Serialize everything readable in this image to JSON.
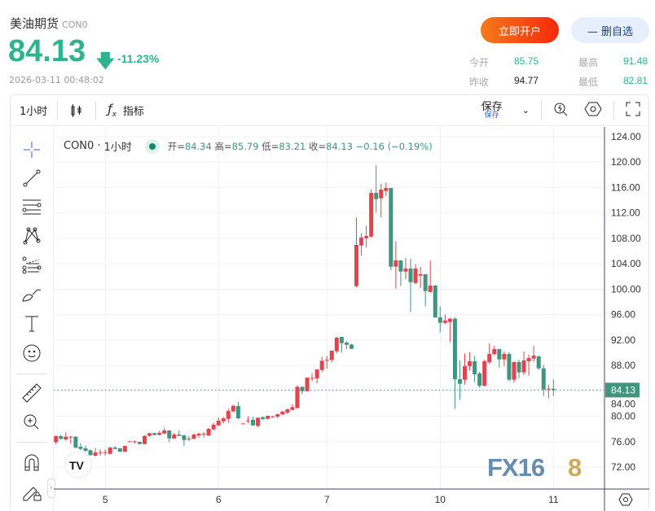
{
  "header": {
    "name": "美油期货",
    "code": "CON0",
    "price": "84.13",
    "change_pct": "-11.23%",
    "timestamp": "2026-03-11 00:48:02",
    "open_account": "立即开户",
    "remove_watch": "— 删自选"
  },
  "stats": {
    "open_label": "今开",
    "open": "85.75",
    "high_label": "最高",
    "high": "91.48",
    "prev_label": "昨收",
    "prev": "94.77",
    "low_label": "最低",
    "low": "82.81"
  },
  "toolbar": {
    "interval": "1小时",
    "indicators": "指标",
    "save": "保存",
    "save_sub": "保存"
  },
  "legend": {
    "symbol": "CON0",
    "interval": "1小时",
    "o_label": "开=",
    "o": "84.34",
    "h_label": "高=",
    "h": "85.79",
    "l_label": "低=",
    "l": "83.21",
    "c_label": "收=",
    "c": "84.13",
    "chg": "−0.16 (−0.19%)"
  },
  "watermark": "FX168",
  "colors": {
    "up": "#e2434d",
    "down": "#3f957e",
    "accent": "#2fb38f"
  },
  "chart_data": {
    "type": "candlestick",
    "ylim": [
      70,
      126
    ],
    "y_ticks": [
      "124.00",
      "120.00",
      "116.00",
      "112.00",
      "108.00",
      "104.00",
      "100.00",
      "96.00",
      "92.00",
      "88.00",
      "84.00",
      "80.00",
      "76.00",
      "72.00"
    ],
    "x_ticks": [
      {
        "label": "5",
        "index": 10
      },
      {
        "label": "6",
        "index": 33
      },
      {
        "label": "7",
        "index": 55
      },
      {
        "label": "10",
        "index": 78
      },
      {
        "label": "11",
        "index": 101
      }
    ],
    "last_price": "84.13",
    "ohlc": [
      [
        75.94,
        77.0,
        75.6,
        76.88
      ],
      [
        76.88,
        77.1,
        76.3,
        76.45
      ],
      [
        76.36,
        77.5,
        76.2,
        76.79
      ],
      [
        76.79,
        76.9,
        75.7,
        76.79
      ],
      [
        76.79,
        76.9,
        75.0,
        75.08
      ],
      [
        75.21,
        75.8,
        74.7,
        74.87
      ],
      [
        74.96,
        75.4,
        74.4,
        74.57
      ],
      [
        74.66,
        74.8,
        73.8,
        73.89
      ],
      [
        73.8,
        75.0,
        73.7,
        74.31
      ],
      [
        74.36,
        74.8,
        73.8,
        74.36
      ],
      [
        74.36,
        74.8,
        73.8,
        74.36
      ],
      [
        74.1,
        75.2,
        74.0,
        75.08
      ],
      [
        75.08,
        75.3,
        74.8,
        74.87
      ],
      [
        74.96,
        75.0,
        74.4,
        74.44
      ],
      [
        74.44,
        75.4,
        74.4,
        75.34
      ],
      [
        76.06,
        76.1,
        76.0,
        76.06
      ],
      [
        76.06,
        76.2,
        75.7,
        76.06
      ],
      [
        75.98,
        76.0,
        75.6,
        75.64
      ],
      [
        75.64,
        77.0,
        75.6,
        76.92
      ],
      [
        76.92,
        77.4,
        76.8,
        77.35
      ],
      [
        77.35,
        77.4,
        77.0,
        77.05
      ],
      [
        77.09,
        77.7,
        77.0,
        77.39
      ],
      [
        77.3,
        78.2,
        77.2,
        77.77
      ],
      [
        77.77,
        77.8,
        75.9,
        76.53
      ],
      [
        76.53,
        77.4,
        76.4,
        77.13
      ],
      [
        77.13,
        77.8,
        76.9,
        76.92
      ],
      [
        77.0,
        77.1,
        75.3,
        76.28
      ],
      [
        76.49,
        76.9,
        76.1,
        76.49
      ],
      [
        76.45,
        77.3,
        76.4,
        77.13
      ],
      [
        77.0,
        77.4,
        76.6,
        77.26
      ],
      [
        77.26,
        77.5,
        76.7,
        77.26
      ],
      [
        77.0,
        78.2,
        76.9,
        78.03
      ],
      [
        77.94,
        79.0,
        77.8,
        78.67
      ],
      [
        78.58,
        79.8,
        78.5,
        79.31
      ],
      [
        79.22,
        79.9,
        78.9,
        79.69
      ],
      [
        79.61,
        81.2,
        79.0,
        80.84
      ],
      [
        80.76,
        81.8,
        80.7,
        81.66
      ],
      [
        81.61,
        82.3,
        79.5,
        79.69
      ],
      [
        78.88,
        78.9,
        78.8,
        78.88
      ],
      [
        79.35,
        80.0,
        78.9,
        79.35
      ],
      [
        79.44,
        79.9,
        78.5,
        78.58
      ],
      [
        78.5,
        79.8,
        78.3,
        79.78
      ],
      [
        79.86,
        80.0,
        79.4,
        79.56
      ],
      [
        79.61,
        80.1,
        79.5,
        80.08
      ],
      [
        79.99,
        80.1,
        79.8,
        79.99
      ],
      [
        79.95,
        80.4,
        79.7,
        80.33
      ],
      [
        80.29,
        80.8,
        80.2,
        80.76
      ],
      [
        80.59,
        81.2,
        80.4,
        81.1
      ],
      [
        81.02,
        81.9,
        80.9,
        81.44
      ],
      [
        81.31,
        84.9,
        81.2,
        84.64
      ],
      [
        84.64,
        84.7,
        83.5,
        83.96
      ],
      [
        83.96,
        86.1,
        83.9,
        86.09
      ],
      [
        86.05,
        86.8,
        85.5,
        86.05
      ],
      [
        85.97,
        87.4,
        85.2,
        87.37
      ],
      [
        87.29,
        89.4,
        87.0,
        88.74
      ],
      [
        88.91,
        89.5,
        87.5,
        88.91
      ],
      [
        88.87,
        90.4,
        88.5,
        90.32
      ],
      [
        90.23,
        92.5,
        89.9,
        92.37
      ],
      [
        92.5,
        92.5,
        90.0,
        91.51
      ],
      [
        91.6,
        91.8,
        90.6,
        91.26
      ],
      [
        91.3,
        91.4,
        90.6,
        90.62
      ],
      [
        100.48,
        111.3,
        100.3,
        106.97
      ],
      [
        106.88,
        108.8,
        105.3,
        108.12
      ],
      [
        108.03,
        110.0,
        106.6,
        108.38
      ],
      [
        108.29,
        115.7,
        108.1,
        115.16
      ],
      [
        115.16,
        119.5,
        112.1,
        114.18
      ],
      [
        114.31,
        116.6,
        111.3,
        115.67
      ],
      [
        115.46,
        116.8,
        114.7,
        115.93
      ],
      [
        115.93,
        115.9,
        103.0,
        103.55
      ],
      [
        103.55,
        107.5,
        100.1,
        104.53
      ],
      [
        104.53,
        104.5,
        100.5,
        102.78
      ],
      [
        102.78,
        104.9,
        101.6,
        103.25
      ],
      [
        103.25,
        104.8,
        96.4,
        101.12
      ],
      [
        100.99,
        103.9,
        100.8,
        103.25
      ],
      [
        102.14,
        103.5,
        100.2,
        102.36
      ],
      [
        102.36,
        102.4,
        97.3,
        99.71
      ],
      [
        99.58,
        104.5,
        99.4,
        100.57
      ],
      [
        100.57,
        100.7,
        95.5,
        95.57
      ],
      [
        95.57,
        97.3,
        93.2,
        94.72
      ],
      [
        94.72,
        96.0,
        94.5,
        95.06
      ],
      [
        94.85,
        95.5,
        91.7,
        95.36
      ],
      [
        95.36,
        95.6,
        81.2,
        85.84
      ],
      [
        85.84,
        88.8,
        82.6,
        85.11
      ],
      [
        85.76,
        89.9,
        85.0,
        87.89
      ],
      [
        87.89,
        90.1,
        87.2,
        88.66
      ],
      [
        88.66,
        89.5,
        85.4,
        86.61
      ],
      [
        86.74,
        87.0,
        84.5,
        84.82
      ],
      [
        84.82,
        88.9,
        84.7,
        88.66
      ],
      [
        88.53,
        91.5,
        88.2,
        89.81
      ],
      [
        89.81,
        91.1,
        89.6,
        90.58
      ],
      [
        90.58,
        90.6,
        87.6,
        88.96
      ],
      [
        88.96,
        90.2,
        87.9,
        89.81
      ],
      [
        89.81,
        90.1,
        85.5,
        85.76
      ],
      [
        85.76,
        88.7,
        85.3,
        88.53
      ],
      [
        88.53,
        88.9,
        86.0,
        86.91
      ],
      [
        86.91,
        90.2,
        86.5,
        88.79
      ],
      [
        88.66,
        89.7,
        86.4,
        89.17
      ],
      [
        89.08,
        91.1,
        88.6,
        89.55
      ],
      [
        89.43,
        89.6,
        87.3,
        87.55
      ],
      [
        87.55,
        88.1,
        83.2,
        84.22
      ],
      [
        84.22,
        85.0,
        82.8,
        84.35
      ],
      [
        84.34,
        85.79,
        83.21,
        84.13
      ]
    ]
  }
}
